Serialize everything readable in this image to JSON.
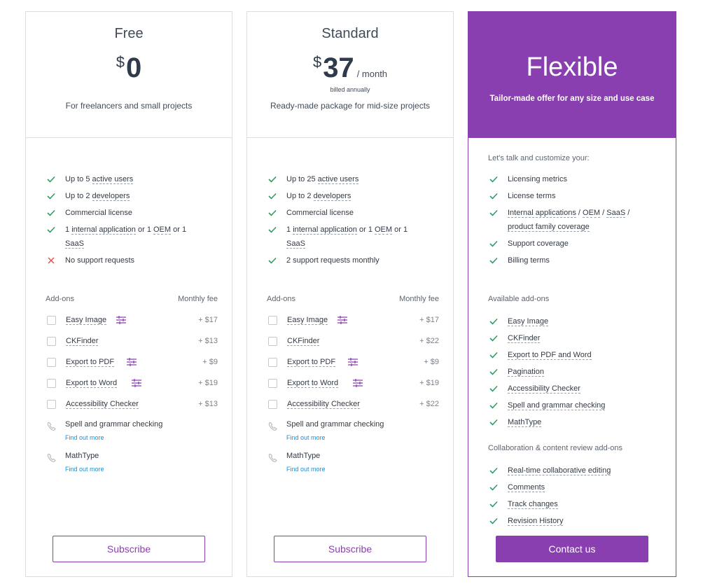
{
  "colors": {
    "accent": "#8a3fb0",
    "check": "#2f9e62",
    "cross": "#e0524a",
    "link": "#1a8fd6"
  },
  "free": {
    "name": "Free",
    "currency": "$",
    "amount": "0",
    "description": "For freelancers and small projects",
    "features": [
      {
        "icon": "check-icon",
        "text": "Up to 5 ",
        "dotted": "active users",
        "after": ""
      },
      {
        "icon": "check-icon",
        "text": "Up to 2 ",
        "dotted": "developers",
        "after": ""
      },
      {
        "icon": "check-icon",
        "text": "Commercial license",
        "dotted": "",
        "after": ""
      },
      {
        "icon": "check-icon",
        "line1a": "1 ",
        "line1b": "internal application",
        "line1c": " or 1 ",
        "line1d": "OEM",
        "line1e": " or 1",
        "line2": "SaaS"
      },
      {
        "icon": "cross-icon",
        "text": "No support requests"
      }
    ],
    "addons_title": "Add-ons",
    "fee_title": "Monthly fee",
    "addons": [
      {
        "label": "Easy Image",
        "fee": "+ $17",
        "config": true
      },
      {
        "label": "CKFinder",
        "fee": "+ $13",
        "config": false
      },
      {
        "label": "Export to PDF",
        "fee": "+ $9",
        "config": true
      },
      {
        "label": "Export to Word",
        "fee": "+ $19",
        "config": true
      },
      {
        "label": "Accessibility Checker",
        "fee": "+ $13",
        "config": false
      }
    ],
    "contact_addons": [
      {
        "label": "Spell and grammar checking",
        "link": "Find out more"
      },
      {
        "label": "MathType",
        "link": "Find out more"
      }
    ],
    "button": "Subscribe"
  },
  "standard": {
    "name": "Standard",
    "currency": "$",
    "amount": "37",
    "period": "/ month",
    "billed": "billed annually",
    "description": "Ready-made package for mid-size projects",
    "features": [
      {
        "text": "Up to 25 ",
        "dotted": "active users"
      },
      {
        "text": "Up to 2 ",
        "dotted": "developers"
      },
      {
        "text": "Commercial license"
      },
      {
        "line1a": "1 ",
        "line1b": "internal application",
        "line1c": " or 1 ",
        "line1d": "OEM",
        "line1e": " or 1",
        "line2": "SaaS"
      },
      {
        "text": "2 support requests monthly"
      }
    ],
    "addons_title": "Add-ons",
    "fee_title": "Monthly fee",
    "addons": [
      {
        "label": "Easy Image",
        "fee": "+ $17",
        "config": true
      },
      {
        "label": "CKFinder",
        "fee": "+ $22",
        "config": false
      },
      {
        "label": "Export to PDF",
        "fee": "+ $9",
        "config": true
      },
      {
        "label": "Export to Word",
        "fee": "+ $19",
        "config": true
      },
      {
        "label": "Accessibility Checker",
        "fee": "+ $22",
        "config": false
      }
    ],
    "contact_addons": [
      {
        "label": "Spell and grammar checking",
        "link": "Find out more"
      },
      {
        "label": "MathType",
        "link": "Find out more"
      }
    ],
    "button": "Subscribe"
  },
  "flexible": {
    "name": "Flexible",
    "description": "Tailor-made offer for any size and use case",
    "intro": "Let's talk and customize your:",
    "custom_items": [
      "Licensing metrics",
      "License terms",
      "Support coverage",
      "Billing terms"
    ],
    "coverage": {
      "a": "Internal applications",
      "sep1": " / ",
      "b": "OEM",
      "sep2": " / ",
      "c": "SaaS",
      "sep3": " /",
      "d": "product family coverage"
    },
    "available_title": "Available add-ons",
    "available_addons": [
      "Easy Image",
      "CKFinder",
      "Export to PDF and Word",
      "Pagination",
      "Accessibility Checker",
      "Spell and grammar checking",
      "MathType"
    ],
    "collab_title": "Collaboration & content review add-ons",
    "collab_addons": [
      "Real-time collaborative editing",
      "Comments",
      "Track changes",
      "Revision History"
    ],
    "button": "Contact us"
  }
}
